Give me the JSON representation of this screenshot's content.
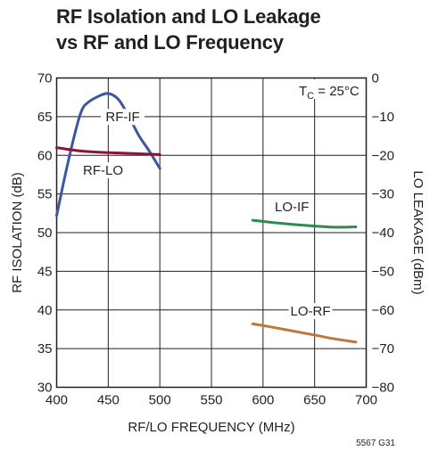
{
  "title_line1": "RF Isolation and LO Leakage",
  "title_line2": "vs RF and LO Frequency",
  "figure_id": "5567 G31",
  "annotation": {
    "main": "T",
    "sub": "C",
    "rest": " = 25°C"
  },
  "chart_data": {
    "type": "line",
    "xlabel": "RF/LO FREQUENCY (MHz)",
    "ylabel": "RF ISOLATION (dB)",
    "y2label": "LO LEAKAGE (dBm)",
    "xlim": [
      400,
      700
    ],
    "ylim": [
      30,
      70
    ],
    "y2lim": [
      -80,
      0
    ],
    "xticks": [
      400,
      450,
      500,
      550,
      600,
      650,
      700
    ],
    "yticks": [
      30,
      35,
      40,
      45,
      50,
      55,
      60,
      65,
      70
    ],
    "y2ticks": [
      0,
      -10,
      -20,
      -30,
      -40,
      -50,
      -60,
      -70,
      -80
    ],
    "grid": true,
    "series": [
      {
        "name": "RF-IF",
        "axis": "left",
        "color": "#3a56a5",
        "x": [
          400,
          410,
          420,
          425,
          430,
          440,
          450,
          460,
          470,
          480,
          490,
          500
        ],
        "y": [
          52.2,
          58.5,
          64.0,
          66.0,
          66.8,
          67.6,
          68.0,
          67.2,
          65.0,
          62.5,
          60.5,
          58.3
        ]
      },
      {
        "name": "RF-LO",
        "axis": "left",
        "color": "#8b1538",
        "x": [
          400,
          420,
          440,
          460,
          480,
          500
        ],
        "y": [
          61.0,
          60.6,
          60.4,
          60.3,
          60.2,
          60.1
        ]
      },
      {
        "name": "LO-IF",
        "axis": "right",
        "color": "#2e8b4e",
        "x": [
          590,
          610,
          630,
          650,
          670,
          690
        ],
        "y": [
          -36.8,
          -37.4,
          -37.9,
          -38.3,
          -38.6,
          -38.5
        ]
      },
      {
        "name": "LO-RF",
        "axis": "right",
        "color": "#c0783a",
        "x": [
          590,
          610,
          630,
          650,
          670,
          690
        ],
        "y": [
          -63.6,
          -64.5,
          -65.5,
          -66.5,
          -67.5,
          -68.3
        ]
      }
    ],
    "labels": [
      {
        "text": "RF-IF",
        "x": 464,
        "y": 64.5
      },
      {
        "text": "RF-LO",
        "x": 445,
        "y": 57.6
      },
      {
        "text": "LO-IF",
        "x": 628,
        "y": -34.2
      },
      {
        "text": "LO-RF",
        "x": 646,
        "y": -61.2
      }
    ]
  }
}
